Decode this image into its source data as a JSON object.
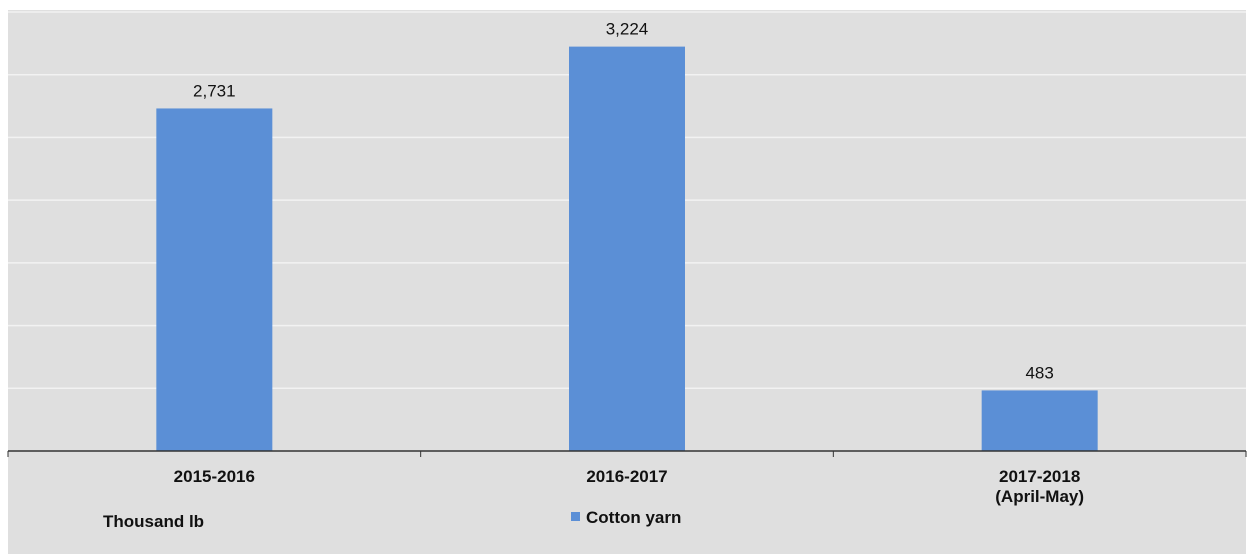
{
  "chart_data": {
    "type": "bar",
    "categories": [
      "2015-2016",
      "2016-2017",
      "2017-2018\n(April-May)"
    ],
    "series": [
      {
        "name": "Cotton yarn",
        "values": [
          2731,
          3224,
          483
        ]
      }
    ],
    "data_labels": [
      "2,731",
      "3,224",
      "483"
    ],
    "unit_label": "Thousand lb",
    "legend": {
      "position": "bottom-center",
      "entries": [
        "Cotton yarn"
      ]
    },
    "title": "",
    "xlabel": "",
    "ylabel": "",
    "ylim": [
      0,
      3500
    ],
    "grid": true,
    "bar_color": "#5b8fd6",
    "plot_background": "#dfdfdf"
  }
}
